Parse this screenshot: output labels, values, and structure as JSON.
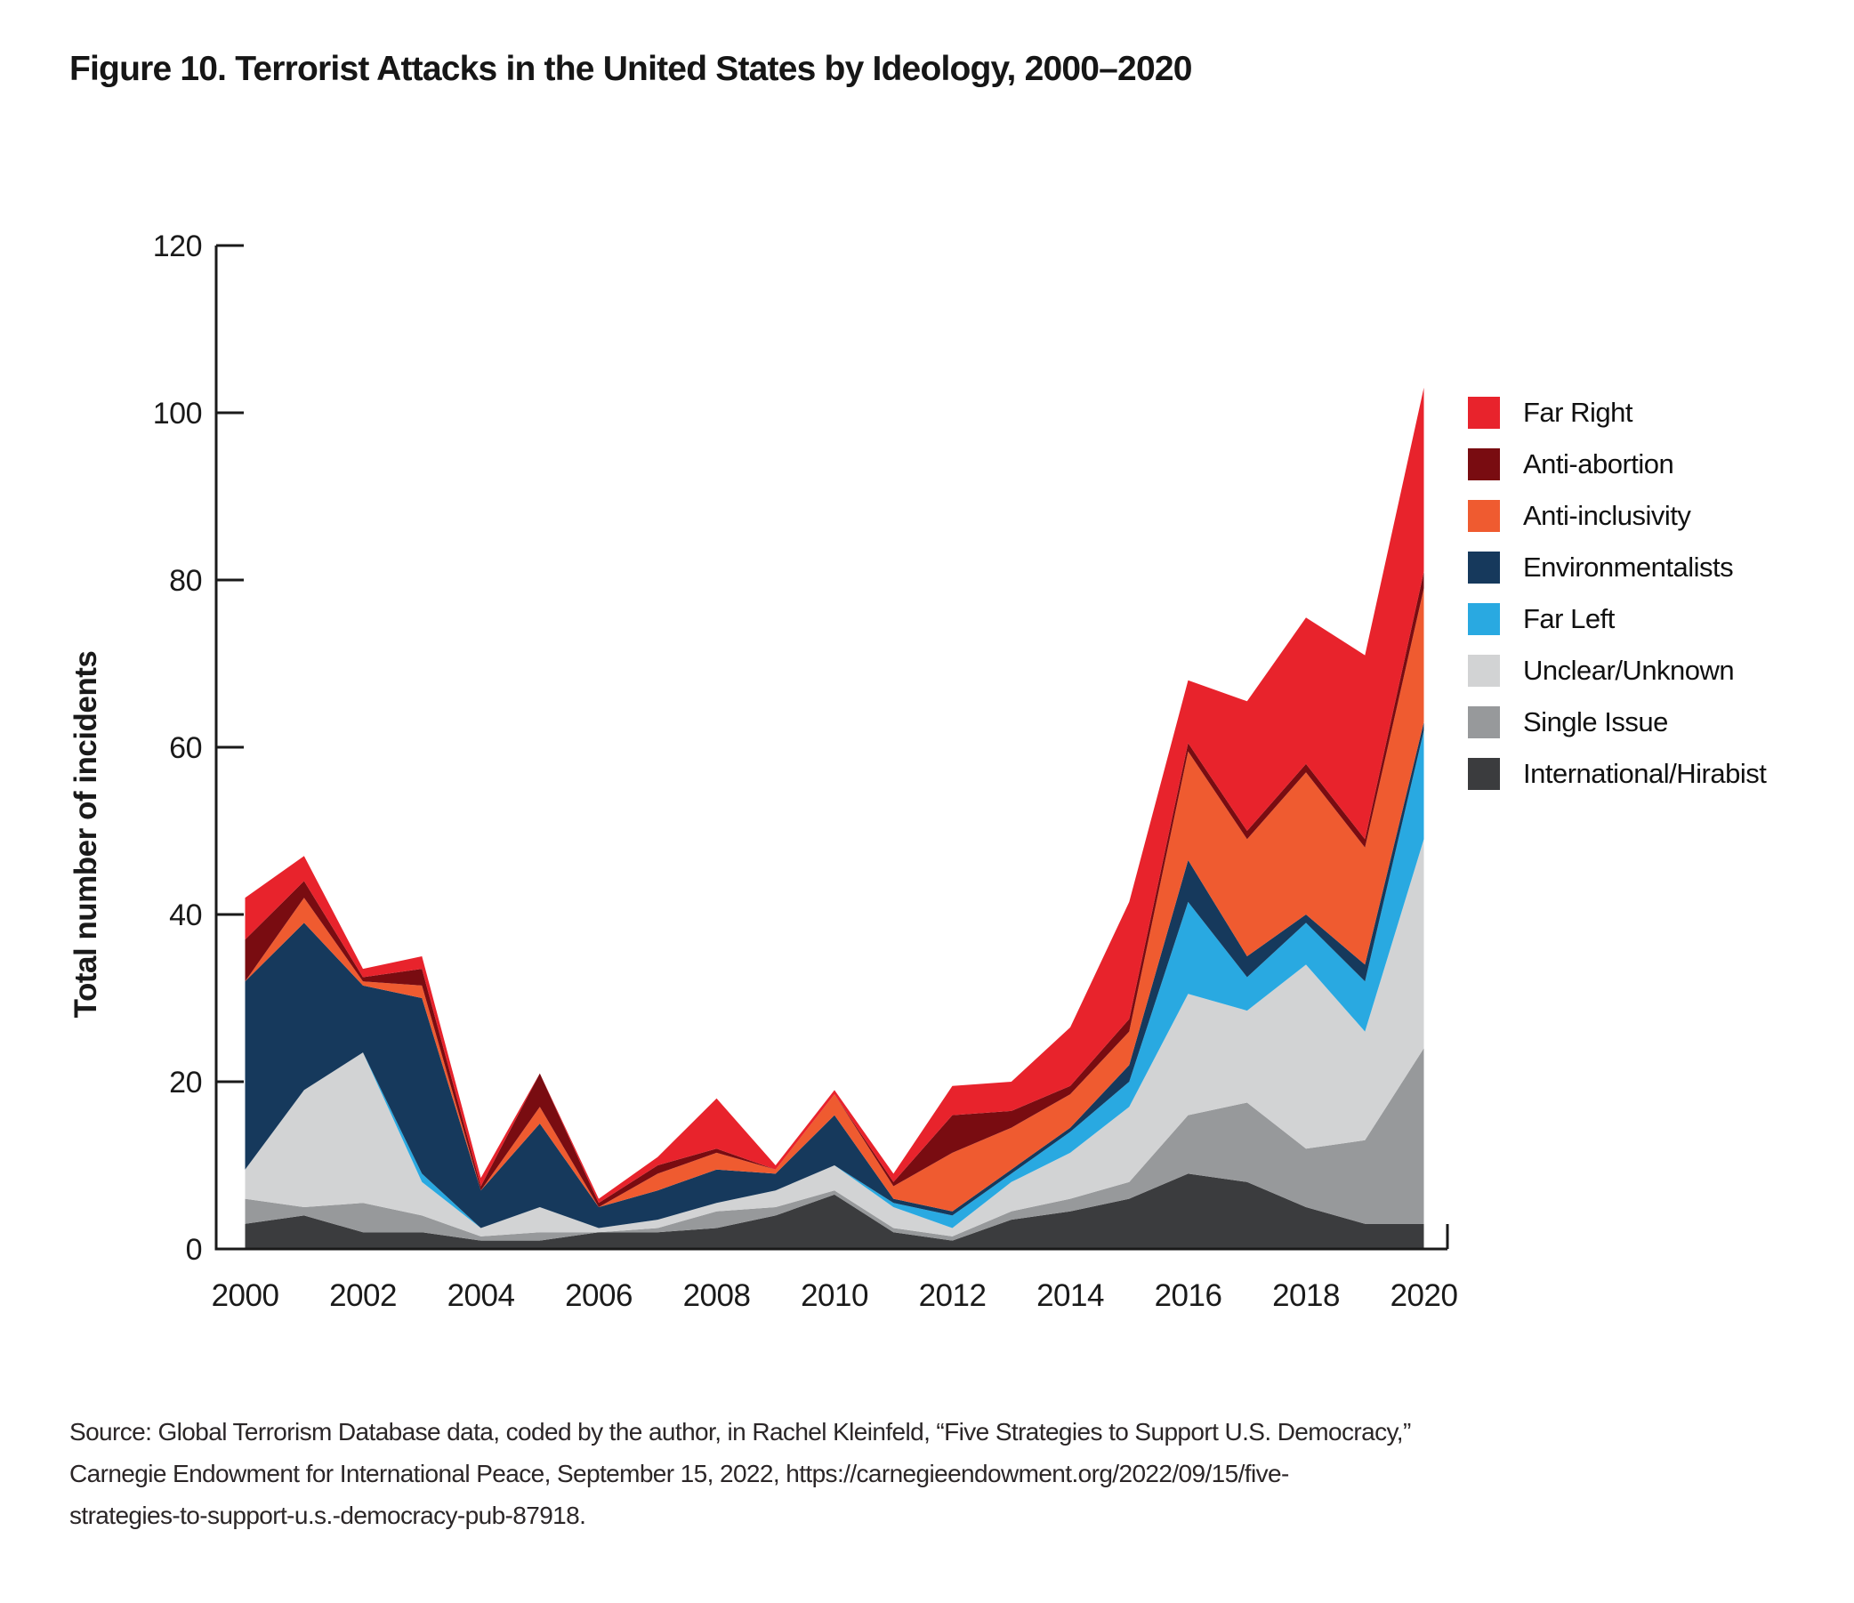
{
  "title": "Figure 10. Terrorist Attacks in the United States by Ideology, 2000–2020",
  "source": {
    "lines": [
      "Source: Global Terrorism Database data, coded by the author, in Rachel Kleinfeld, “Five Strategies to Support U.S. Democracy,”",
      "Carnegie Endowment for International Peace, September 15, 2022, https://carnegieendowment.org/2022/09/15/five-",
      "strategies-to-support-u.s.-democracy-pub-87918."
    ]
  },
  "axis_color": "#1a1a1a",
  "chart_data": {
    "type": "area",
    "stacked": true,
    "title": "Figure 10. Terrorist Attacks in the United States by Ideology, 2000–2020",
    "xlabel": "",
    "ylabel": "Total number of incidents",
    "ylim": [
      0,
      120
    ],
    "yticks": [
      0,
      20,
      40,
      60,
      80,
      100,
      120
    ],
    "xticks": [
      2000,
      2002,
      2004,
      2006,
      2008,
      2010,
      2012,
      2014,
      2016,
      2018,
      2020
    ],
    "grid": false,
    "legend_position": "right",
    "x": [
      2000,
      2001,
      2002,
      2003,
      2004,
      2005,
      2006,
      2007,
      2008,
      2009,
      2010,
      2011,
      2012,
      2013,
      2014,
      2015,
      2016,
      2017,
      2018,
      2019,
      2020
    ],
    "series": [
      {
        "name": "Far Right",
        "color": "#e8232c",
        "values": [
          5,
          3,
          1,
          1.5,
          1,
          0,
          0.5,
          1,
          6,
          0.5,
          0.5,
          1,
          3.5,
          3.5,
          7,
          14,
          7.5,
          15.5,
          17.5,
          22,
          22
        ]
      },
      {
        "name": "Anti-abortion",
        "color": "#790c11",
        "values": [
          5,
          2,
          0.5,
          2,
          0.5,
          4,
          0.5,
          1,
          0.5,
          0,
          0,
          0.5,
          4.5,
          2,
          1,
          1.5,
          1,
          1,
          1,
          1,
          2
        ]
      },
      {
        "name": "Anti-inclusivity",
        "color": "#ef5b30",
        "values": [
          0,
          3,
          0.5,
          1.5,
          0,
          2,
          0,
          2,
          2,
          0.5,
          2.5,
          1.5,
          7,
          5,
          4,
          4,
          13,
          14,
          17,
          14,
          16
        ]
      },
      {
        "name": "Environmentalists",
        "color": "#16395c",
        "values": [
          22.5,
          20,
          8,
          21,
          4.5,
          10,
          2.5,
          3.5,
          4,
          2,
          6,
          0.5,
          0.5,
          0.5,
          0.5,
          2,
          5,
          2.5,
          1,
          2,
          1
        ]
      },
      {
        "name": "Far Left",
        "color": "#29a9e1",
        "values": [
          0,
          0,
          0,
          1,
          0,
          0,
          0,
          0,
          0,
          0,
          0,
          0.5,
          1.5,
          1,
          2.5,
          3,
          11,
          4,
          5,
          6,
          13
        ]
      },
      {
        "name": "Unclear/Unknown",
        "color": "#d2d3d4",
        "values": [
          3.5,
          14,
          18,
          4,
          1,
          3,
          0.5,
          1,
          1,
          2,
          3,
          2.5,
          1,
          3.5,
          5.5,
          9,
          14.5,
          11,
          22,
          13,
          25
        ]
      },
      {
        "name": "Single Issue",
        "color": "#97999b",
        "values": [
          3,
          1,
          3.5,
          2,
          0.5,
          1,
          0,
          0.5,
          2,
          1,
          0.5,
          0.5,
          0.5,
          1,
          1.5,
          2,
          7,
          9.5,
          7,
          10,
          21
        ]
      },
      {
        "name": "International/Hirabist",
        "color": "#3b3c3e",
        "values": [
          3,
          4,
          2,
          2,
          1,
          1,
          2,
          2,
          2.5,
          4,
          6.5,
          2,
          1,
          3.5,
          4.5,
          6,
          9,
          8,
          5,
          3,
          3
        ]
      }
    ],
    "stack_order_bottom_to_top": [
      "International/Hirabist",
      "Single Issue",
      "Unclear/Unknown",
      "Far Left",
      "Environmentalists",
      "Anti-inclusivity",
      "Anti-abortion",
      "Far Right"
    ]
  }
}
